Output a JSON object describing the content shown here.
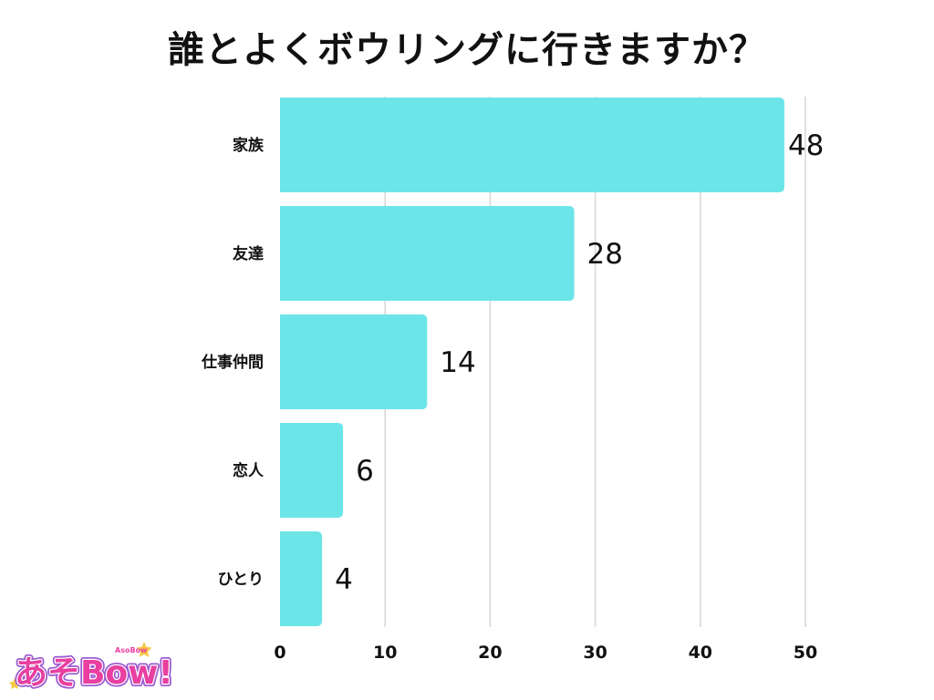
{
  "chart_data": {
    "type": "bar",
    "orientation": "horizontal",
    "title": "誰とよくボウリングに行きますか？",
    "categories": [
      "家族",
      "友達",
      "仕事仲間",
      "恋人",
      "ひとり"
    ],
    "values": [
      48,
      28,
      14,
      6,
      4
    ],
    "xlim": [
      0,
      50
    ],
    "xticks": [
      0,
      10,
      20,
      30,
      40,
      50
    ],
    "grid": "vertical",
    "bar_color": "#6ce5e8",
    "grid_color": "#d6d6d6"
  },
  "logo": {
    "text": "あそBow!",
    "subtext": "AsoBow",
    "colors": {
      "main": "#e83fa0",
      "outline": "#ffffff",
      "star": "#f7c948",
      "shadow": "#9b5bd1"
    }
  }
}
